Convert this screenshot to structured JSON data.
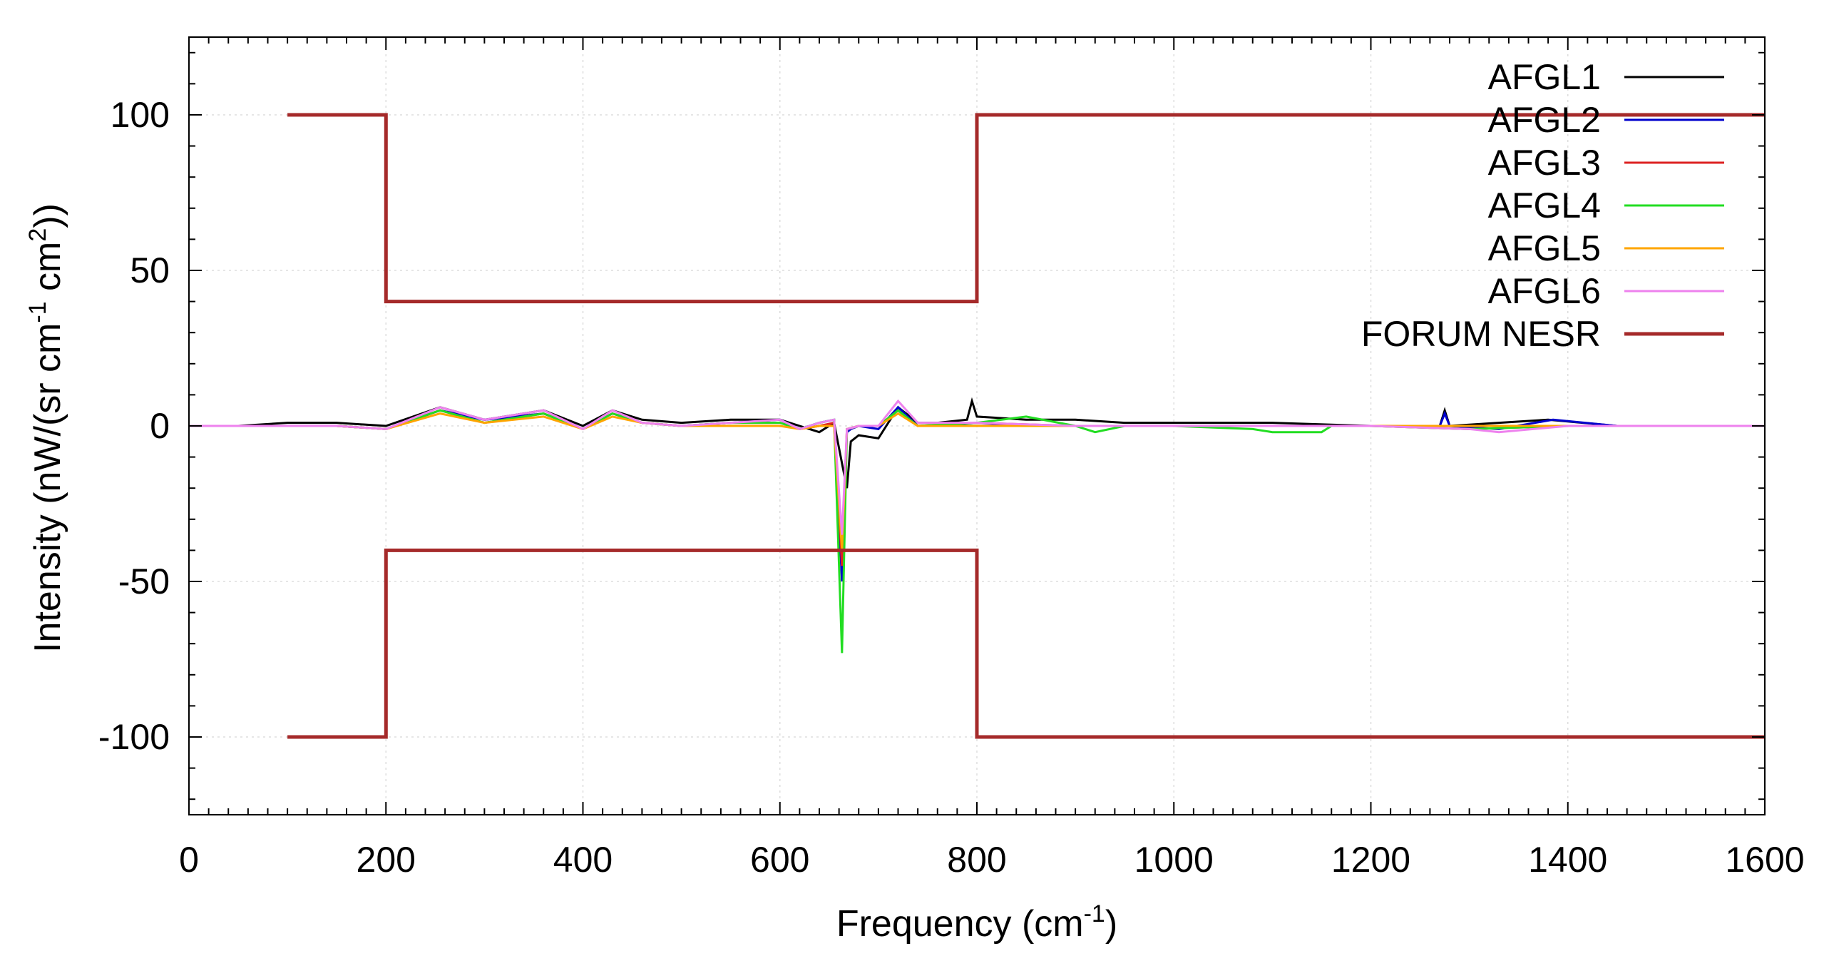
{
  "chart_data": {
    "type": "line",
    "xlabel": "Frequency (cm",
    "xlabel_sup": "-1",
    "xlabel_tail": ")",
    "ylabel": "Intensity (nW/(sr cm",
    "ylabel_sup1": "-1",
    "ylabel_mid": " cm",
    "ylabel_sup2": "2",
    "ylabel_tail": "))",
    "xlim": [
      0,
      1600
    ],
    "ylim": [
      -125,
      125
    ],
    "x_ticks": [
      0,
      200,
      400,
      600,
      800,
      1000,
      1200,
      1400,
      1600
    ],
    "x_tick_labels": [
      "0",
      "200",
      "400",
      "600",
      "800",
      "1000",
      "1200",
      "1400",
      "1600"
    ],
    "y_ticks": [
      -100,
      -50,
      0,
      50,
      100
    ],
    "y_tick_labels": [
      "-100",
      "-50",
      "0",
      "50",
      "100"
    ],
    "grid": true,
    "legend_position": "top-right",
    "series": [
      {
        "name": "AFGL1",
        "color": "#000000",
        "x": [
          0,
          50,
          100,
          150,
          200,
          255,
          300,
          360,
          400,
          430,
          460,
          500,
          550,
          600,
          620,
          640,
          655,
          663,
          668,
          672,
          680,
          700,
          720,
          740,
          760,
          790,
          795,
          800,
          850,
          900,
          950,
          1000,
          1100,
          1200,
          1270,
          1275,
          1280,
          1330,
          1380,
          1450,
          1600
        ],
        "y": [
          0,
          0,
          1,
          1,
          0,
          6,
          2,
          5,
          0,
          5,
          2,
          1,
          2,
          2,
          0,
          -2,
          1,
          -12,
          -20,
          -5,
          -3,
          -4,
          6,
          1,
          1,
          2,
          8,
          3,
          2,
          2,
          1,
          1,
          1,
          0,
          0,
          5,
          0,
          1,
          2,
          0,
          0
        ]
      },
      {
        "name": "AFGL2",
        "color": "#0000cc",
        "x": [
          0,
          50,
          100,
          150,
          200,
          255,
          300,
          360,
          400,
          430,
          460,
          500,
          550,
          600,
          620,
          640,
          655,
          663,
          668,
          672,
          680,
          700,
          720,
          740,
          760,
          800,
          850,
          900,
          1000,
          1100,
          1200,
          1270,
          1275,
          1280,
          1330,
          1385,
          1450,
          1600
        ],
        "y": [
          0,
          0,
          0,
          0,
          -1,
          5,
          2,
          4,
          -1,
          4,
          1,
          0,
          1,
          2,
          -1,
          1,
          2,
          -50,
          -2,
          -1,
          0,
          -1,
          6,
          0,
          0,
          1,
          0,
          0,
          0,
          0,
          0,
          0,
          4,
          0,
          -1,
          2,
          0,
          0
        ]
      },
      {
        "name": "AFGL3",
        "color": "#dd2222",
        "x": [
          0,
          50,
          100,
          150,
          200,
          255,
          300,
          360,
          400,
          430,
          460,
          500,
          550,
          600,
          620,
          640,
          655,
          663,
          668,
          680,
          700,
          720,
          740,
          800,
          900,
          1000,
          1100,
          1200,
          1300,
          1400,
          1600
        ],
        "y": [
          0,
          0,
          0,
          0,
          -1,
          5,
          1,
          4,
          -1,
          4,
          1,
          0,
          1,
          1,
          -1,
          0,
          1,
          -45,
          -1,
          0,
          0,
          5,
          0,
          1,
          0,
          0,
          0,
          0,
          -1,
          0,
          0
        ]
      },
      {
        "name": "AFGL4",
        "color": "#22dd22",
        "x": [
          0,
          50,
          100,
          150,
          200,
          255,
          300,
          360,
          400,
          430,
          460,
          500,
          550,
          600,
          620,
          640,
          655,
          663,
          668,
          680,
          700,
          720,
          740,
          800,
          850,
          900,
          920,
          950,
          1000,
          1080,
          1100,
          1150,
          1160,
          1200,
          1300,
          1400,
          1600
        ],
        "y": [
          0,
          0,
          0,
          0,
          -1,
          5,
          1,
          4,
          -1,
          4,
          1,
          0,
          1,
          1,
          -1,
          1,
          2,
          -73,
          -1,
          0,
          0,
          5,
          0,
          1,
          3,
          0,
          -2,
          0,
          0,
          -1,
          -2,
          -2,
          0,
          0,
          -1,
          0,
          0
        ]
      },
      {
        "name": "AFGL5",
        "color": "#ffa500",
        "x": [
          0,
          50,
          100,
          150,
          200,
          255,
          300,
          360,
          400,
          430,
          460,
          500,
          550,
          600,
          620,
          640,
          655,
          663,
          668,
          680,
          700,
          720,
          740,
          800,
          900,
          1000,
          1100,
          1200,
          1300,
          1400,
          1600
        ],
        "y": [
          0,
          0,
          0,
          0,
          -1,
          4,
          1,
          3,
          -1,
          3,
          1,
          0,
          0,
          0,
          -1,
          0,
          0,
          -40,
          -1,
          0,
          0,
          4,
          0,
          0,
          0,
          0,
          0,
          0,
          0,
          0,
          0
        ]
      },
      {
        "name": "AFGL6",
        "color": "#ee82ee",
        "x": [
          0,
          50,
          100,
          150,
          200,
          255,
          300,
          360,
          400,
          430,
          460,
          500,
          550,
          600,
          620,
          640,
          655,
          663,
          668,
          680,
          700,
          720,
          740,
          800,
          900,
          1000,
          1100,
          1200,
          1300,
          1330,
          1400,
          1600
        ],
        "y": [
          0,
          0,
          0,
          0,
          -1,
          6,
          2,
          5,
          -1,
          5,
          1,
          0,
          1,
          2,
          -1,
          1,
          2,
          -35,
          -1,
          0,
          0,
          8,
          1,
          1,
          0,
          0,
          0,
          0,
          -1,
          -2,
          0,
          0
        ]
      },
      {
        "name": "FORUM NESR",
        "color": "#a52a2a",
        "thick": true,
        "x": [
          100,
          200,
          200,
          800,
          800,
          1600
        ],
        "y": [
          100,
          100,
          40,
          40,
          100,
          100
        ]
      },
      {
        "name": "",
        "color": "#a52a2a",
        "thick": true,
        "x": [
          100,
          200,
          200,
          800,
          800,
          1600
        ],
        "y": [
          -100,
          -100,
          -40,
          -40,
          -100,
          -100
        ]
      }
    ]
  }
}
